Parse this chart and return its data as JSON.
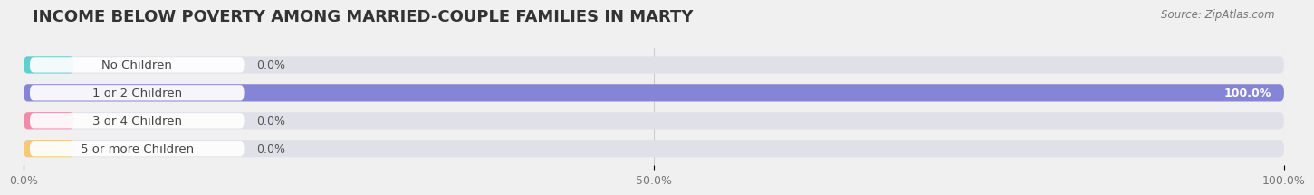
{
  "title": "INCOME BELOW POVERTY AMONG MARRIED-COUPLE FAMILIES IN MARTY",
  "source": "Source: ZipAtlas.com",
  "categories": [
    "No Children",
    "1 or 2 Children",
    "3 or 4 Children",
    "5 or more Children"
  ],
  "values": [
    0.0,
    100.0,
    0.0,
    0.0
  ],
  "bar_colors": [
    "#62cece",
    "#8585d8",
    "#f08caa",
    "#f5c97a"
  ],
  "background_color": "#f0f0f0",
  "bar_bg_color": "#e0e0e8",
  "xlim": [
    0,
    100
  ],
  "xticks": [
    0,
    50,
    100
  ],
  "xtick_labels": [
    "0.0%",
    "50.0%",
    "100.0%"
  ],
  "title_fontsize": 13,
  "label_fontsize": 9.5,
  "value_fontsize": 9,
  "source_fontsize": 8.5
}
